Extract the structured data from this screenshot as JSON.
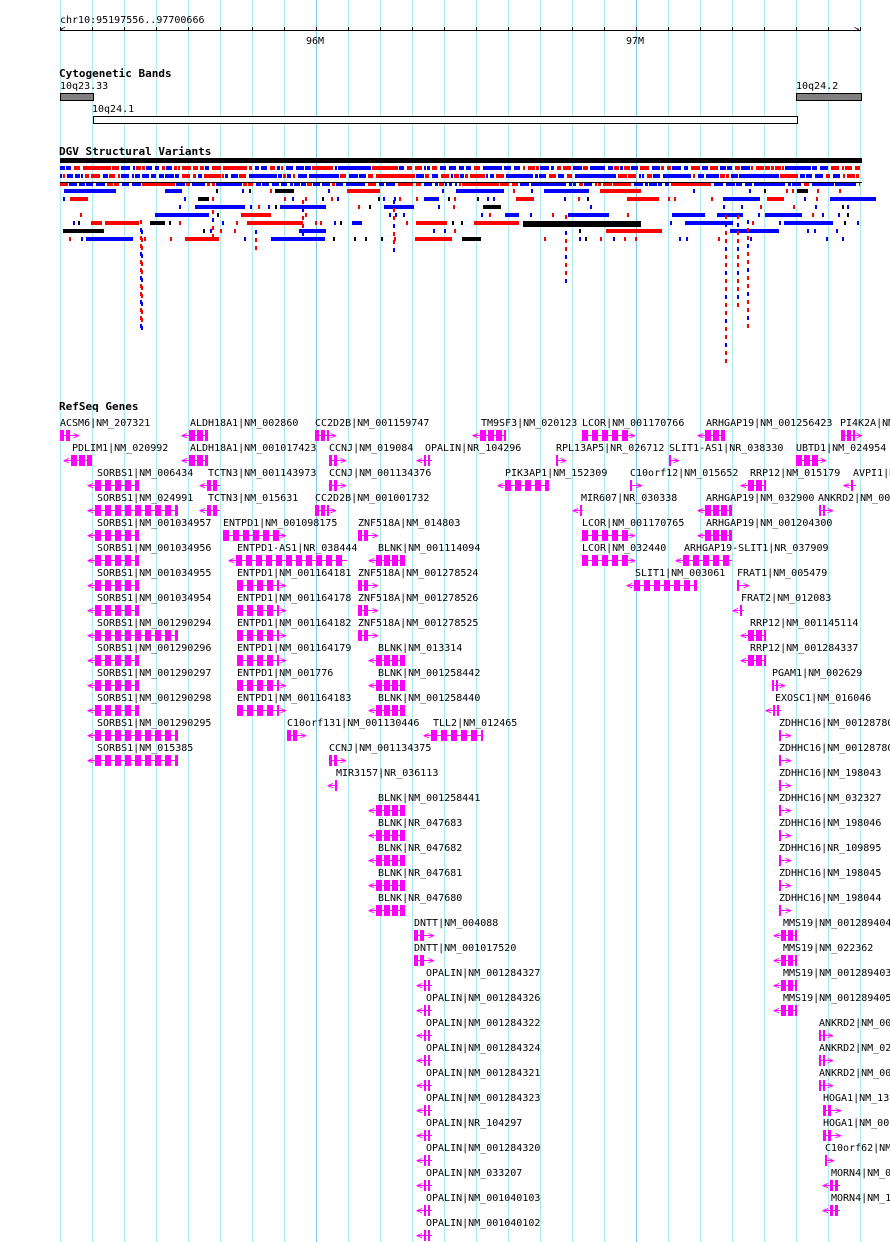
{
  "ruler": {
    "region": "chr10:95197556..97700666",
    "ticks": [
      "96M",
      "97M"
    ]
  },
  "cytobands": {
    "title": "Cytogenetic Bands",
    "bands": [
      "10q23.33",
      "10q24.1",
      "10q24.2"
    ]
  },
  "dgv": {
    "title": "DGV Structural Variants",
    "colors": {
      "gain": "#0000ff",
      "loss": "#ff0000",
      "both": "#8b4513",
      "other": "#000000"
    }
  },
  "refseq": {
    "title": "RefSeq Genes",
    "color": "#ff00ff",
    "genes": [
      {
        "label": "ACSM6|NM_207321",
        "strand": "+"
      },
      {
        "label": "ALDH18A1|NM_002860",
        "strand": "-"
      },
      {
        "label": "CC2D2B|NM_001159747",
        "strand": "+"
      },
      {
        "label": "TM9SF3|NM_020123",
        "strand": "-"
      },
      {
        "label": "LCOR|NM_001170766",
        "strand": "+"
      },
      {
        "label": "ARHGAP19|NM_001256423",
        "strand": "-"
      },
      {
        "label": "PI4K2A|NM",
        "strand": "+"
      },
      {
        "label": "PDLIM1|NM_020992",
        "strand": "-"
      },
      {
        "label": "ALDH18A1|NM_001017423",
        "strand": "-"
      },
      {
        "label": "CCNJ|NM_019084",
        "strand": "+"
      },
      {
        "label": "OPALIN|NR_104296",
        "strand": "-"
      },
      {
        "label": "RPL13AP5|NR_026712",
        "strand": "+"
      },
      {
        "label": "SLIT1-AS1|NR_038330",
        "strand": "+"
      },
      {
        "label": "UBTD1|NM_024954",
        "strand": "+"
      },
      {
        "label": "SORBS1|NM_006434",
        "strand": "-"
      },
      {
        "label": "TCTN3|NM_001143973",
        "strand": "-"
      },
      {
        "label": "CCNJ|NM_001134376",
        "strand": "+"
      },
      {
        "label": "PIK3AP1|NM_152309",
        "strand": "-"
      },
      {
        "label": "C10orf12|NM_015652",
        "strand": "+"
      },
      {
        "label": "RRP12|NM_015179",
        "strand": "-"
      },
      {
        "label": "AVPI1|N",
        "strand": "-"
      },
      {
        "label": "SORBS1|NM_024991",
        "strand": "-"
      },
      {
        "label": "TCTN3|NM_015631",
        "strand": "-"
      },
      {
        "label": "CC2D2B|NM_001001732",
        "strand": "+"
      },
      {
        "label": "MIR607|NR_030338",
        "strand": "-"
      },
      {
        "label": "ARHGAP19|NM_032900",
        "strand": "-"
      },
      {
        "label": "ANKRD2|NM_00",
        "strand": "+"
      },
      {
        "label": "SORBS1|NM_001034957",
        "strand": "-"
      },
      {
        "label": "ENTPD1|NM_001098175",
        "strand": "+"
      },
      {
        "label": "ZNF518A|NM_014803",
        "strand": "+"
      },
      {
        "label": "LCOR|NM_001170765",
        "strand": "+"
      },
      {
        "label": "ARHGAP19|NM_001204300",
        "strand": "-"
      },
      {
        "label": "SORBS1|NM_001034956",
        "strand": "-"
      },
      {
        "label": "ENTPD1-AS1|NR_038444",
        "strand": "-"
      },
      {
        "label": "BLNK|NM_001114094",
        "strand": "-"
      },
      {
        "label": "LCOR|NM_032440",
        "strand": "+"
      },
      {
        "label": "ARHGAP19-SLIT1|NR_037909",
        "strand": "-"
      },
      {
        "label": "SORBS1|NM_001034955",
        "strand": "-"
      },
      {
        "label": "ENTPD1|NM_001164181",
        "strand": "+"
      },
      {
        "label": "ZNF518A|NM_001278524",
        "strand": "+"
      },
      {
        "label": "SLIT1|NM_003061",
        "strand": "-"
      },
      {
        "label": "FRAT1|NM_005479",
        "strand": "+"
      },
      {
        "label": "SORBS1|NM_001034954",
        "strand": "-"
      },
      {
        "label": "ENTPD1|NM_001164178",
        "strand": "+"
      },
      {
        "label": "ZNF518A|NM_001278526",
        "strand": "+"
      },
      {
        "label": "FRAT2|NM_012083",
        "strand": "-"
      },
      {
        "label": "SORBS1|NM_001290294",
        "strand": "-"
      },
      {
        "label": "ENTPD1|NM_001164182",
        "strand": "+"
      },
      {
        "label": "ZNF518A|NM_001278525",
        "strand": "+"
      },
      {
        "label": "RRP12|NM_001145114",
        "strand": "-"
      },
      {
        "label": "SORBS1|NM_001290296",
        "strand": "-"
      },
      {
        "label": "ENTPD1|NM_001164179",
        "strand": "+"
      },
      {
        "label": "BLNK|NM_013314",
        "strand": "-"
      },
      {
        "label": "RRP12|NM_001284337",
        "strand": "-"
      },
      {
        "label": "SORBS1|NM_001290297",
        "strand": "-"
      },
      {
        "label": "ENTPD1|NM_001776",
        "strand": "+"
      },
      {
        "label": "BLNK|NM_001258442",
        "strand": "-"
      },
      {
        "label": "PGAM1|NM_002629",
        "strand": "+"
      },
      {
        "label": "SORBS1|NM_001290298",
        "strand": "-"
      },
      {
        "label": "ENTPD1|NM_001164183",
        "strand": "+"
      },
      {
        "label": "BLNK|NM_001258440",
        "strand": "-"
      },
      {
        "label": "EXOSC1|NM_016046",
        "strand": "-"
      },
      {
        "label": "SORBS1|NM_001290295",
        "strand": "-"
      },
      {
        "label": "C10orf131|NM_001130446",
        "strand": "+"
      },
      {
        "label": "TLL2|NM_012465",
        "strand": "-"
      },
      {
        "label": "ZDHHC16|NM_00128780",
        "strand": "+"
      },
      {
        "label": "SORBS1|NM_015385",
        "strand": "-"
      },
      {
        "label": "CCNJ|NM_001134375",
        "strand": "+"
      },
      {
        "label": "ZDHHC16|NM_00128780",
        "strand": "+"
      },
      {
        "label": "MIR3157|NR_036113",
        "strand": "-"
      },
      {
        "label": "ZDHHC16|NM_198043",
        "strand": "+"
      },
      {
        "label": "BLNK|NM_001258441",
        "strand": "-"
      },
      {
        "label": "ZDHHC16|NM_032327",
        "strand": "+"
      },
      {
        "label": "BLNK|NR_047683",
        "strand": "-"
      },
      {
        "label": "ZDHHC16|NM_198046",
        "strand": "+"
      },
      {
        "label": "BLNK|NR_047682",
        "strand": "-"
      },
      {
        "label": "ZDHHC16|NR_109895",
        "strand": "+"
      },
      {
        "label": "BLNK|NR_047681",
        "strand": "-"
      },
      {
        "label": "ZDHHC16|NM_198045",
        "strand": "+"
      },
      {
        "label": "BLNK|NR_047680",
        "strand": "-"
      },
      {
        "label": "ZDHHC16|NM_198044",
        "strand": "+"
      },
      {
        "label": "DNTT|NM_004088",
        "strand": "+"
      },
      {
        "label": "MMS19|NM_001289404",
        "strand": "-"
      },
      {
        "label": "DNTT|NM_001017520",
        "strand": "+"
      },
      {
        "label": "MMS19|NM_022362",
        "strand": "-"
      },
      {
        "label": "OPALIN|NM_001284327",
        "strand": "-"
      },
      {
        "label": "MMS19|NM_001289403",
        "strand": "-"
      },
      {
        "label": "OPALIN|NM_001284326",
        "strand": "-"
      },
      {
        "label": "MMS19|NM_001289405",
        "strand": "-"
      },
      {
        "label": "OPALIN|NM_001284322",
        "strand": "-"
      },
      {
        "label": "ANKRD2|NM_00",
        "strand": "+"
      },
      {
        "label": "OPALIN|NM_001284324",
        "strand": "-"
      },
      {
        "label": "ANKRD2|NM_02",
        "strand": "+"
      },
      {
        "label": "OPALIN|NM_001284321",
        "strand": "-"
      },
      {
        "label": "ANKRD2|NM_00",
        "strand": "+"
      },
      {
        "label": "OPALIN|NM_001284323",
        "strand": "-"
      },
      {
        "label": "HOGA1|NM_13",
        "strand": "+"
      },
      {
        "label": "OPALIN|NR_104297",
        "strand": "-"
      },
      {
        "label": "HOGA1|NM_00",
        "strand": "+"
      },
      {
        "label": "OPALIN|NM_001284320",
        "strand": "-"
      },
      {
        "label": "C10orf62|NM_",
        "strand": "+"
      },
      {
        "label": "OPALIN|NM_033207",
        "strand": "-"
      },
      {
        "label": "MORN4|NM_0",
        "strand": "-"
      },
      {
        "label": "OPALIN|NM_001040103",
        "strand": "-"
      },
      {
        "label": "MORN4|NM_1",
        "strand": "-"
      },
      {
        "label": "OPALIN|NM_001040102",
        "strand": "-"
      }
    ]
  }
}
